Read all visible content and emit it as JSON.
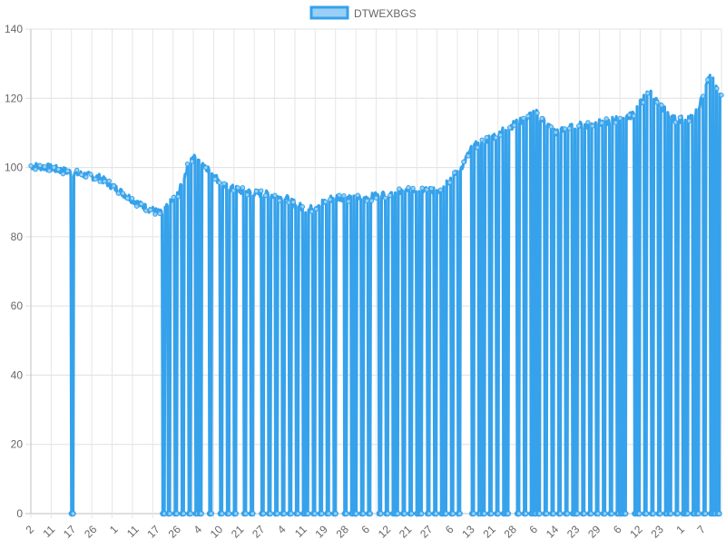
{
  "chart_data": {
    "type": "line",
    "legend": {
      "position": "top",
      "entries": [
        "DTWEXBGS"
      ]
    },
    "series": [
      {
        "name": "DTWEXBGS",
        "color": "#36a2eb",
        "fill_color": "#9ad0f5",
        "x_ticks": [
          "2",
          "11",
          "17",
          "26",
          "1",
          "11",
          "17",
          "26",
          "4",
          "10",
          "21",
          "27",
          "4",
          "11",
          "19",
          "28",
          "6",
          "12",
          "21",
          "27",
          "6",
          "13",
          "21",
          "28",
          "6",
          "14",
          "23",
          "29",
          "6",
          "12",
          "23",
          "1",
          "7"
        ],
        "y_ticks": [
          0,
          20,
          40,
          60,
          80,
          100,
          120,
          140
        ],
        "ylim": [
          0,
          140
        ],
        "trend_anchors": [
          [
            0.0,
            100.5
          ],
          [
            0.025,
            100.0
          ],
          [
            0.06,
            98.5
          ],
          [
            0.1,
            97.0
          ],
          [
            0.13,
            93.0
          ],
          [
            0.16,
            89.0
          ],
          [
            0.19,
            86.5
          ],
          [
            0.215,
            93.0
          ],
          [
            0.23,
            102.0
          ],
          [
            0.24,
            103.0
          ],
          [
            0.255,
            100.0
          ],
          [
            0.28,
            94.5
          ],
          [
            0.31,
            93.0
          ],
          [
            0.33,
            92.5
          ],
          [
            0.35,
            92.0
          ],
          [
            0.37,
            91.0
          ],
          [
            0.4,
            87.5
          ],
          [
            0.42,
            89.5
          ],
          [
            0.44,
            91.5
          ],
          [
            0.48,
            91.0
          ],
          [
            0.52,
            92.5
          ],
          [
            0.56,
            93.5
          ],
          [
            0.59,
            93.5
          ],
          [
            0.62,
            99.0
          ],
          [
            0.64,
            106.0
          ],
          [
            0.67,
            109.0
          ],
          [
            0.7,
            112.5
          ],
          [
            0.73,
            116.0
          ],
          [
            0.76,
            110.0
          ],
          [
            0.79,
            112.0
          ],
          [
            0.83,
            113.0
          ],
          [
            0.87,
            115.0
          ],
          [
            0.895,
            122.0
          ],
          [
            0.91,
            118.0
          ],
          [
            0.93,
            114.0
          ],
          [
            0.96,
            114.0
          ],
          [
            0.985,
            127.0
          ],
          [
            1.0,
            120.0
          ]
        ],
        "zero_points": [
          0.06,
          0.192,
          0.2,
          0.21,
          0.22,
          0.23,
          0.24,
          0.245,
          0.26,
          0.275,
          0.285,
          0.295,
          0.31,
          0.32,
          0.335,
          0.345,
          0.355,
          0.365,
          0.375,
          0.385,
          0.395,
          0.4,
          0.41,
          0.42,
          0.43,
          0.44,
          0.455,
          0.465,
          0.47,
          0.48,
          0.49,
          0.505,
          0.515,
          0.525,
          0.53,
          0.54,
          0.55,
          0.56,
          0.565,
          0.575,
          0.585,
          0.595,
          0.6,
          0.61,
          0.62,
          0.64,
          0.65,
          0.655,
          0.665,
          0.675,
          0.685,
          0.69,
          0.705,
          0.715,
          0.725,
          0.73,
          0.735,
          0.745,
          0.755,
          0.765,
          0.775,
          0.785,
          0.79,
          0.8,
          0.81,
          0.82,
          0.83,
          0.84,
          0.85,
          0.855,
          0.86,
          0.875,
          0.88,
          0.89,
          0.9,
          0.91,
          0.92,
          0.925,
          0.935,
          0.945,
          0.95,
          0.96,
          0.965,
          0.975,
          0.985,
          0.99,
          0.995
        ]
      }
    ]
  }
}
